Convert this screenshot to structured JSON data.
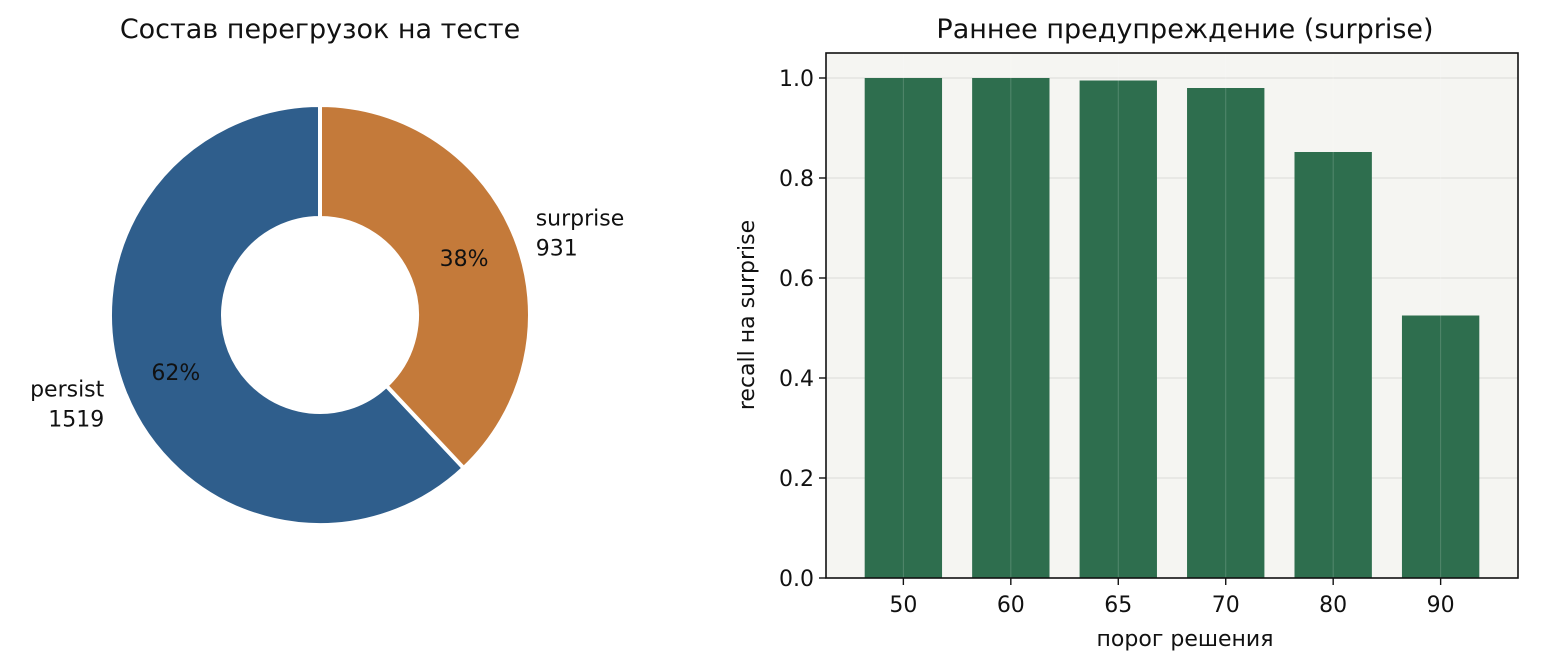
{
  "chart_data": [
    {
      "type": "pie",
      "title": "Состав перегрузок на тесте",
      "donut": true,
      "slices": [
        {
          "label": "persist",
          "value": 1519,
          "pct_label": "62%",
          "color": "#2f5e8c"
        },
        {
          "label": "surprise",
          "value": 931,
          "pct_label": "38%",
          "color": "#c47a3a"
        }
      ]
    },
    {
      "type": "bar",
      "title": "Раннее предупреждение (surprise)",
      "xlabel": "порог решения",
      "ylabel": "recall на surprise",
      "categories": [
        "50",
        "60",
        "65",
        "70",
        "80",
        "90"
      ],
      "values": [
        1.0,
        1.0,
        0.995,
        0.98,
        0.852,
        0.525
      ],
      "ylim": [
        0,
        1.05
      ],
      "yticks": [
        "0.0",
        "0.2",
        "0.4",
        "0.6",
        "0.8",
        "1.0"
      ],
      "grid": true,
      "bar_color": "#2e6e4e",
      "plot_bg": "#f5f5f2"
    }
  ]
}
